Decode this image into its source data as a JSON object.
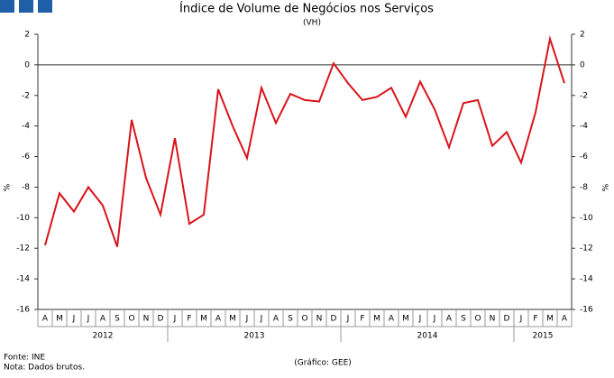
{
  "chart_data": {
    "type": "line",
    "title": "Índice de Volume de Negócios nos Serviços",
    "subtitle": "(VH)",
    "y_label": "%",
    "y2_label": "%",
    "categories": [
      "A",
      "M",
      "J",
      "J",
      "A",
      "S",
      "O",
      "N",
      "D",
      "J",
      "F",
      "M",
      "A",
      "M",
      "J",
      "J",
      "A",
      "S",
      "O",
      "N",
      "D",
      "J",
      "F",
      "M",
      "A",
      "M",
      "J",
      "J",
      "A",
      "S",
      "O",
      "N",
      "D",
      "J",
      "F",
      "M",
      "A"
    ],
    "groups": [
      {
        "label": "2012",
        "span": 9
      },
      {
        "label": "2013",
        "span": 12
      },
      {
        "label": "2014",
        "span": 12
      },
      {
        "label": "2015",
        "span": 4
      }
    ],
    "series": [
      {
        "name": "VH",
        "color": "#d9141b",
        "values": [
          -11.8,
          -8.4,
          -9.6,
          -8.0,
          -9.2,
          -11.9,
          -3.6,
          -7.4,
          -9.8,
          -4.8,
          -10.4,
          -9.8,
          -1.6,
          -4.0,
          -6.1,
          -1.5,
          -3.8,
          -1.9,
          -2.3,
          -2.4,
          0.1,
          -1.2,
          -2.3,
          -2.1,
          -1.5,
          -3.4,
          -1.1,
          -2.9,
          -5.4,
          -2.5,
          -2.3,
          -5.3,
          -4.4,
          -6.4,
          -3.1,
          1.7,
          -1.2
        ]
      }
    ],
    "ylim": [
      -16,
      2
    ],
    "yticks": [
      -16,
      -14,
      -12,
      -10,
      -8,
      -6,
      -4,
      -2,
      0,
      2
    ],
    "y2lim": [
      -16,
      2
    ],
    "y2ticks": [
      -16,
      -14,
      -12,
      -10,
      -8,
      -6,
      -4,
      -2,
      0,
      2
    ],
    "grid": false,
    "source": "Fonte: INE",
    "note": "Nota: Dados brutos.",
    "credit": "(Gráfico: GEE)"
  }
}
